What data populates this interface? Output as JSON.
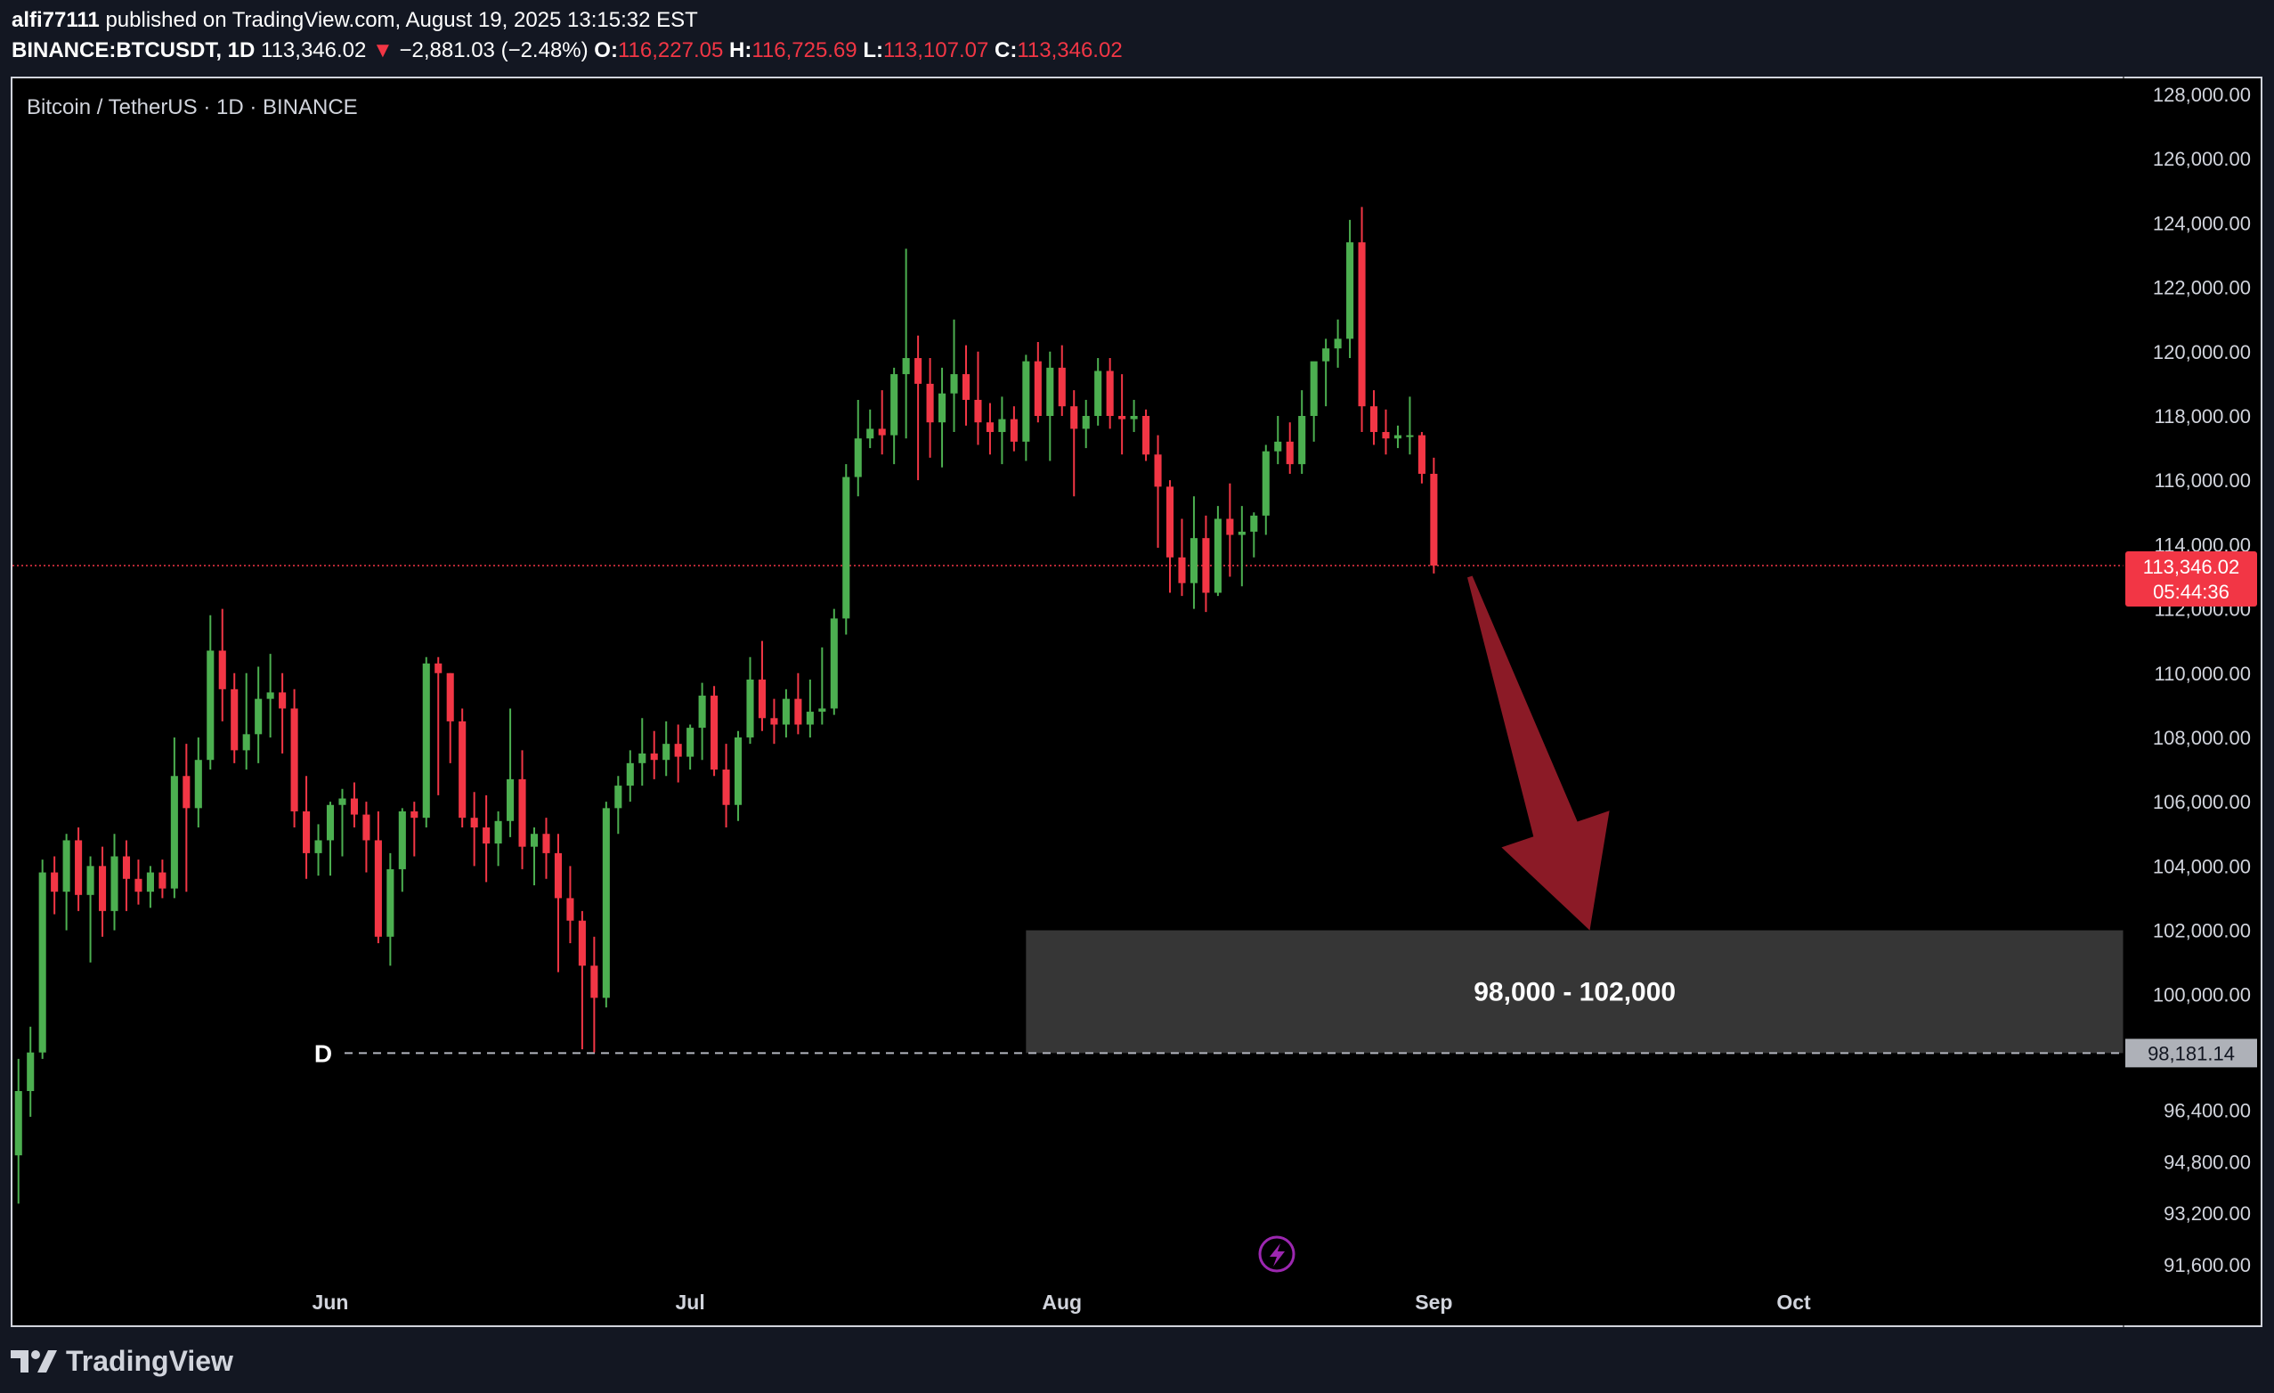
{
  "header": {
    "publisher": "alfi77111",
    "published_text": "published on TradingView.com, August 19, 2025 13:15:32 EST",
    "symbol": "BINANCE:BTCUSDT, 1D",
    "price": "113,346.02",
    "change_arrow": "▼",
    "change": "−2,881.03 (−2.48%)",
    "o_label": "O:",
    "o_value": "116,227.05",
    "h_label": "H:",
    "h_value": "116,725.69",
    "l_label": "L:",
    "l_value": "113,107.07",
    "c_label": "C:",
    "c_value": "113,346.02"
  },
  "chart_title": "Bitcoin / TetherUS · 1D · BINANCE",
  "colors": {
    "up": "#4caf50",
    "down": "#f23645",
    "zone": "#363636",
    "arrow": "#8b1a26",
    "price_line": "#f23645"
  },
  "footer": {
    "brand": "TradingView",
    "logo_icon": "tradingview-logo-icon"
  },
  "chart_data": {
    "type": "candlestick",
    "interval": "1D",
    "ylim": [
      90600,
      128500
    ],
    "y_ticks": [
      {
        "value": 128000,
        "label": "128,000.00"
      },
      {
        "value": 126000,
        "label": "126,000.00"
      },
      {
        "value": 124000,
        "label": "124,000.00"
      },
      {
        "value": 122000,
        "label": "122,000.00"
      },
      {
        "value": 120000,
        "label": "120,000.00"
      },
      {
        "value": 118000,
        "label": "118,000.00"
      },
      {
        "value": 116000,
        "label": "116,000.00"
      },
      {
        "value": 114000,
        "label": "114,000.00"
      },
      {
        "value": 112000,
        "label": "112,000.00"
      },
      {
        "value": 110000,
        "label": "110,000.00"
      },
      {
        "value": 108000,
        "label": "108,000.00"
      },
      {
        "value": 106000,
        "label": "106,000.00"
      },
      {
        "value": 104000,
        "label": "104,000.00"
      },
      {
        "value": 102000,
        "label": "102,000.00"
      },
      {
        "value": 100000,
        "label": "100,000.00"
      },
      {
        "value": 96400,
        "label": "96,400.00"
      },
      {
        "value": 94800,
        "label": "94,800.00"
      },
      {
        "value": 93200,
        "label": "93,200.00"
      },
      {
        "value": 91600,
        "label": "91,600.00"
      }
    ],
    "x_ticks": [
      {
        "index": 26,
        "label": "Jun"
      },
      {
        "index": 56,
        "label": "Jul"
      },
      {
        "index": 87,
        "label": "Aug"
      },
      {
        "index": 118,
        "label": "Sep"
      },
      {
        "index": 148,
        "label": "Oct"
      }
    ],
    "x_range": [
      -0.5,
      175.5
    ],
    "candles": [
      [
        95000,
        98000,
        93500,
        97000
      ],
      [
        97000,
        99000,
        96200,
        98200
      ],
      [
        98200,
        104200,
        98000,
        103800
      ],
      [
        103800,
        104300,
        102500,
        103200
      ],
      [
        103200,
        105000,
        102000,
        104800
      ],
      [
        104800,
        105200,
        102600,
        103100
      ],
      [
        103100,
        104300,
        101000,
        104000
      ],
      [
        104000,
        104600,
        101800,
        102600
      ],
      [
        102600,
        105000,
        102000,
        104300
      ],
      [
        104300,
        104800,
        102600,
        103600
      ],
      [
        103600,
        104200,
        102800,
        103200
      ],
      [
        103200,
        104000,
        102700,
        103800
      ],
      [
        103800,
        104200,
        103000,
        103300
      ],
      [
        103300,
        108000,
        103000,
        106800
      ],
      [
        106800,
        107800,
        103200,
        105800
      ],
      [
        105800,
        108000,
        105200,
        107300
      ],
      [
        107300,
        111800,
        107000,
        110700
      ],
      [
        110700,
        112000,
        108500,
        109500
      ],
      [
        109500,
        110000,
        107200,
        107600
      ],
      [
        107600,
        110000,
        107000,
        108100
      ],
      [
        108100,
        110200,
        107200,
        109200
      ],
      [
        109200,
        110600,
        108000,
        109400
      ],
      [
        109400,
        110000,
        107500,
        108900
      ],
      [
        108900,
        109500,
        105200,
        105700
      ],
      [
        105700,
        106800,
        103600,
        104400
      ],
      [
        104400,
        105300,
        103700,
        104800
      ],
      [
        104800,
        106000,
        103700,
        105900
      ],
      [
        105900,
        106400,
        104300,
        106100
      ],
      [
        106100,
        106600,
        105200,
        105600
      ],
      [
        105600,
        106000,
        103800,
        104800
      ],
      [
        104800,
        105700,
        101600,
        101800
      ],
      [
        101800,
        104400,
        100900,
        103900
      ],
      [
        103900,
        105800,
        103200,
        105700
      ],
      [
        105700,
        106000,
        104300,
        105500
      ],
      [
        105500,
        110500,
        105200,
        110300
      ],
      [
        110300,
        110500,
        106200,
        110000
      ],
      [
        110000,
        110000,
        107200,
        108500
      ],
      [
        108500,
        108900,
        105200,
        105500
      ],
      [
        105500,
        106300,
        104000,
        105200
      ],
      [
        105200,
        106200,
        103500,
        104700
      ],
      [
        104700,
        105700,
        104000,
        105400
      ],
      [
        105400,
        108900,
        104900,
        106700
      ],
      [
        106700,
        107600,
        103900,
        104600
      ],
      [
        104600,
        105200,
        103400,
        105000
      ],
      [
        105000,
        105500,
        103600,
        104400
      ],
      [
        104400,
        105000,
        100700,
        103000
      ],
      [
        103000,
        104000,
        101600,
        102300
      ],
      [
        102300,
        102600,
        98300,
        100900
      ],
      [
        100900,
        101800,
        98200,
        99900
      ],
      [
        99900,
        106000,
        99600,
        105800
      ],
      [
        105800,
        106800,
        105000,
        106500
      ],
      [
        106500,
        107600,
        106000,
        107200
      ],
      [
        107200,
        108600,
        106500,
        107500
      ],
      [
        107500,
        108200,
        106700,
        107300
      ],
      [
        107300,
        108500,
        106800,
        107800
      ],
      [
        107800,
        108400,
        106600,
        107400
      ],
      [
        107400,
        108400,
        107000,
        108300
      ],
      [
        108300,
        109700,
        107300,
        109300
      ],
      [
        109300,
        109600,
        106800,
        107000
      ],
      [
        107000,
        107800,
        105200,
        105900
      ],
      [
        105900,
        108200,
        105400,
        108000
      ],
      [
        108000,
        110500,
        107800,
        109800
      ],
      [
        109800,
        111000,
        108200,
        108600
      ],
      [
        108600,
        109200,
        107800,
        108400
      ],
      [
        108400,
        109500,
        108000,
        109200
      ],
      [
        109200,
        110000,
        108100,
        108400
      ],
      [
        108400,
        109800,
        108000,
        108800
      ],
      [
        108800,
        110800,
        108400,
        108900
      ],
      [
        108900,
        112000,
        108700,
        111700
      ],
      [
        111700,
        116500,
        111200,
        116100
      ],
      [
        116100,
        118500,
        115500,
        117300
      ],
      [
        117300,
        118200,
        117000,
        117600
      ],
      [
        117600,
        118800,
        116800,
        117400
      ],
      [
        117400,
        119500,
        116500,
        119300
      ],
      [
        119300,
        123200,
        117300,
        119800
      ],
      [
        119800,
        120500,
        116000,
        119000
      ],
      [
        119000,
        119800,
        116700,
        117800
      ],
      [
        117800,
        119500,
        116400,
        118700
      ],
      [
        118700,
        121000,
        117500,
        119300
      ],
      [
        119300,
        120200,
        117700,
        118500
      ],
      [
        118500,
        120000,
        117100,
        117800
      ],
      [
        117800,
        118400,
        116800,
        117500
      ],
      [
        117500,
        118600,
        116500,
        117900
      ],
      [
        117900,
        118300,
        116900,
        117200
      ],
      [
        117200,
        119900,
        116600,
        119700
      ],
      [
        119700,
        120300,
        117800,
        118000
      ],
      [
        118000,
        120000,
        116600,
        119500
      ],
      [
        119500,
        120200,
        118000,
        118300
      ],
      [
        118300,
        118800,
        115500,
        117600
      ],
      [
        117600,
        118500,
        117000,
        118000
      ],
      [
        118000,
        119800,
        117700,
        119400
      ],
      [
        119400,
        119800,
        117600,
        118000
      ],
      [
        118000,
        119300,
        116800,
        117900
      ],
      [
        117900,
        118500,
        117500,
        118000
      ],
      [
        118000,
        118200,
        116600,
        116800
      ],
      [
        116800,
        117400,
        113900,
        115800
      ],
      [
        115800,
        116000,
        112500,
        113600
      ],
      [
        113600,
        114800,
        112400,
        112800
      ],
      [
        112800,
        115500,
        112000,
        114200
      ],
      [
        114200,
        114900,
        111900,
        112500
      ],
      [
        112500,
        115200,
        112400,
        114800
      ],
      [
        114800,
        115900,
        113000,
        114300
      ],
      [
        114300,
        115200,
        112700,
        114400
      ],
      [
        114400,
        115000,
        113600,
        114900
      ],
      [
        114900,
        117100,
        114300,
        116900
      ],
      [
        116900,
        118000,
        116500,
        117200
      ],
      [
        117200,
        117800,
        116200,
        116500
      ],
      [
        116500,
        118800,
        116200,
        118000
      ],
      [
        118000,
        119500,
        117200,
        119700
      ],
      [
        119700,
        120400,
        118300,
        120100
      ],
      [
        120100,
        121000,
        119500,
        120400
      ],
      [
        120400,
        124100,
        119800,
        123400
      ],
      [
        123400,
        124500,
        117500,
        118300
      ],
      [
        118300,
        118800,
        117100,
        117500
      ],
      [
        117500,
        118200,
        116800,
        117300
      ],
      [
        117300,
        117700,
        117000,
        117400
      ],
      [
        117400,
        118600,
        116800,
        117400
      ],
      [
        117400,
        117500,
        115900,
        116200
      ],
      [
        116200,
        116700,
        113100,
        113346
      ]
    ],
    "price_line": 113346.02,
    "last_price_label": "113,346.02",
    "countdown_label": "05:44:36",
    "support_line": {
      "value": 98181.14,
      "label": "98,181.14",
      "marker": "D",
      "from_index": 26
    },
    "target_zone": {
      "low": 98181.14,
      "high": 102000,
      "from_index": 84,
      "label": "98,000 - 102,000"
    },
    "arrow": {
      "from": [
        121,
        113000
      ],
      "to": [
        131,
        102000
      ]
    },
    "lightning_icon": "lightning-icon"
  }
}
